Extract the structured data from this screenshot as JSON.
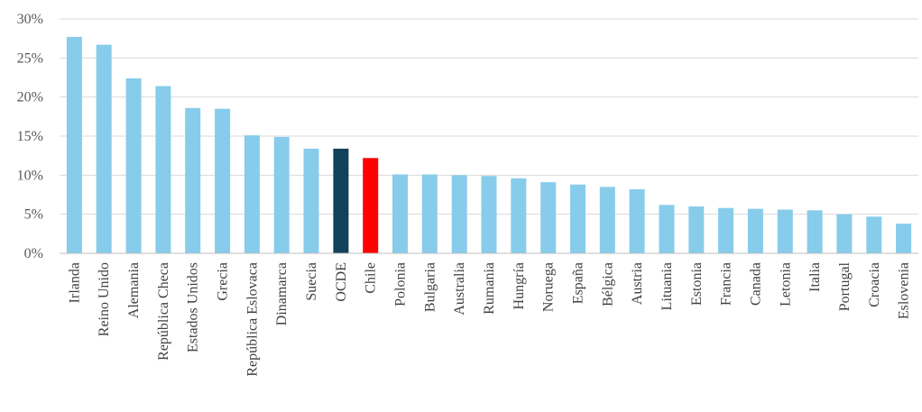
{
  "chart_data": {
    "type": "bar",
    "title": "",
    "xlabel": "",
    "ylabel": "",
    "ylim": [
      0,
      30
    ],
    "yticks": [
      "0%",
      "5%",
      "10%",
      "15%",
      "20%",
      "25%",
      "30%"
    ],
    "grid": true,
    "categories": [
      "Irlanda",
      "Reino Unido",
      "Alemania",
      "República Checa",
      "Estados Unidos",
      "Grecia",
      "República Eslovaca",
      "Dinamarca",
      "Suecia",
      "OCDE",
      "Chile",
      "Polonia",
      "Bulgaria",
      "Australia",
      "Rumania",
      "Hungría",
      "Noruega",
      "España",
      "Bélgica",
      "Austria",
      "Lituania",
      "Estonia",
      "Francia",
      "Canada",
      "Letonia",
      "Italia",
      "Portugal",
      "Croacia",
      "Eslovenia"
    ],
    "values": [
      27.7,
      26.7,
      22.4,
      21.4,
      18.6,
      18.5,
      15.1,
      14.9,
      13.4,
      13.4,
      12.2,
      10.1,
      10.1,
      10.0,
      9.9,
      9.6,
      9.1,
      8.8,
      8.5,
      8.2,
      6.2,
      6.0,
      5.8,
      5.7,
      5.6,
      5.5,
      5.0,
      4.7,
      3.8
    ],
    "colors": {
      "default": "#87cceb",
      "OCDE": "#12415a",
      "Chile": "#ff0000"
    }
  }
}
